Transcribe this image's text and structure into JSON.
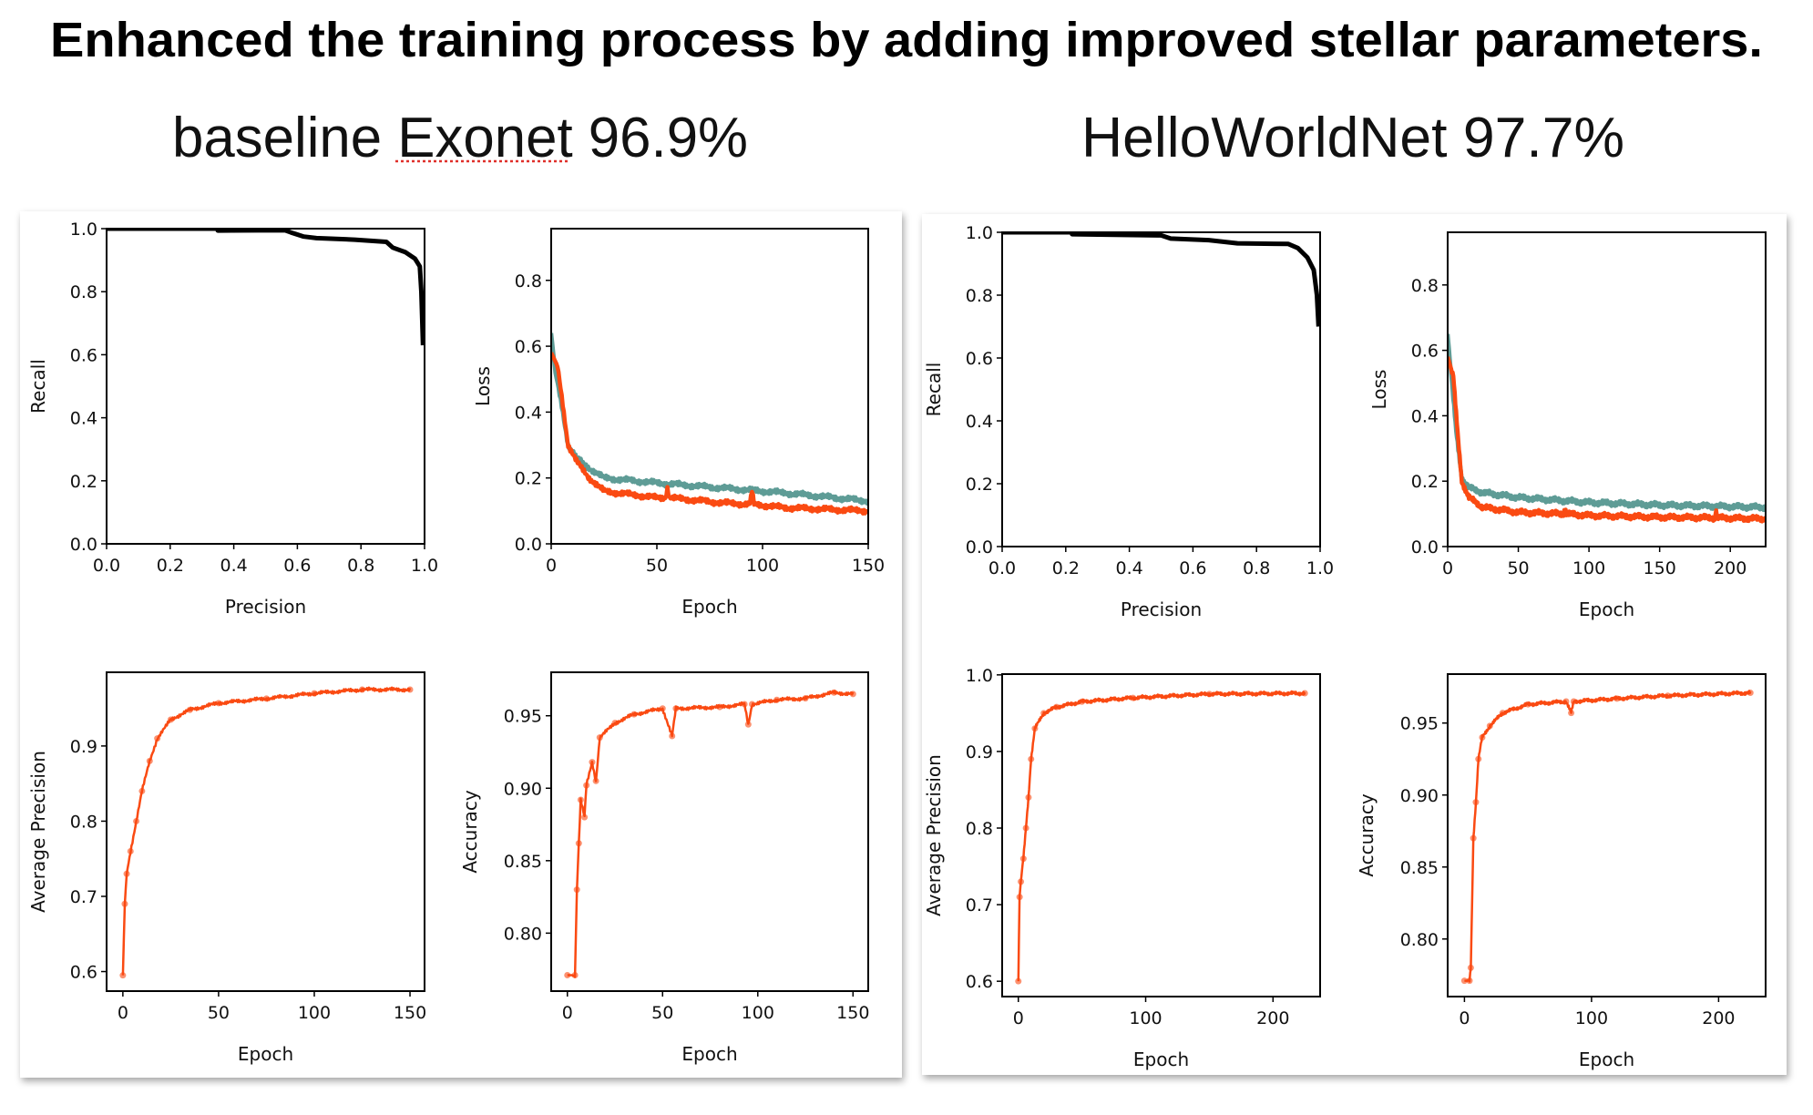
{
  "title": "Enhanced the training process by adding improved stellar parameters.",
  "panels": [
    {
      "label_prefix": "baseline ",
      "label_model": "Exonet",
      "label_score": " 96.9%"
    },
    {
      "label_prefix": "",
      "label_model": "HelloWorldNet",
      "label_score": " 97.7%"
    }
  ],
  "colors": {
    "train": "#fa4a12",
    "validation": "#5e9c96",
    "pr": "#000000",
    "spellcheck": "#e0302a"
  },
  "chart_data": [
    {
      "id": "exonet-pr",
      "type": "line",
      "xlabel": "Precision",
      "ylabel": "Recall",
      "xlim": [
        0,
        1
      ],
      "ylim": [
        0,
        1
      ],
      "xticks": [
        "0.0",
        "0.2",
        "0.4",
        "0.6",
        "0.8",
        "1.0"
      ],
      "yticks": [
        "0.0",
        "0.2",
        "0.4",
        "0.6",
        "0.8",
        "1.0"
      ],
      "series": [
        {
          "name": "PR curve",
          "color": "#000000",
          "points": [
            [
              0,
              1.0
            ],
            [
              0.35,
              1.0
            ],
            [
              0.35,
              0.994
            ],
            [
              0.56,
              0.995
            ],
            [
              0.58,
              0.988
            ],
            [
              0.62,
              0.975
            ],
            [
              0.66,
              0.97
            ],
            [
              0.78,
              0.965
            ],
            [
              0.88,
              0.958
            ],
            [
              0.9,
              0.94
            ],
            [
              0.94,
              0.925
            ],
            [
              0.97,
              0.905
            ],
            [
              0.985,
              0.88
            ],
            [
              0.99,
              0.8
            ],
            [
              0.995,
              0.63
            ]
          ]
        }
      ]
    },
    {
      "id": "exonet-loss",
      "type": "line",
      "xlabel": "Epoch",
      "ylabel": "Loss",
      "xlim": [
        0,
        150
      ],
      "ylim": [
        0,
        0.957
      ],
      "xticks": [
        "0",
        "50",
        "100",
        "150"
      ],
      "yticks": [
        "0.0",
        "0.2",
        "0.4",
        "0.6",
        "0.8"
      ],
      "series": [
        {
          "name": "validation",
          "color": "#5e9c96",
          "points": [
            [
              0,
              0.64
            ],
            [
              2,
              0.52
            ],
            [
              5,
              0.42
            ],
            [
              8,
              0.3
            ],
            [
              12,
              0.26
            ],
            [
              18,
              0.23
            ],
            [
              25,
              0.2
            ],
            [
              50,
              0.185
            ],
            [
              80,
              0.17
            ],
            [
              110,
              0.155
            ],
            [
              150,
              0.13
            ]
          ]
        },
        {
          "name": "train",
          "color": "#fa4a12",
          "points": [
            [
              0,
              0.58
            ],
            [
              3,
              0.54
            ],
            [
              5,
              0.45
            ],
            [
              8,
              0.3
            ],
            [
              12,
              0.25
            ],
            [
              18,
              0.2
            ],
            [
              25,
              0.16
            ],
            [
              50,
              0.14
            ],
            [
              54,
              0.14
            ],
            [
              55,
              0.17
            ],
            [
              56,
              0.14
            ],
            [
              80,
              0.125
            ],
            [
              94,
              0.12
            ],
            [
              95,
              0.16
            ],
            [
              96,
              0.12
            ],
            [
              110,
              0.11
            ],
            [
              150,
              0.1
            ]
          ]
        }
      ]
    },
    {
      "id": "exonet-ap",
      "type": "line",
      "xlabel": "Epoch",
      "ylabel": "Average Precision",
      "xlim": [
        -8.5,
        157.6
      ],
      "ylim": [
        0.574,
        0.998
      ],
      "xticks": [
        "0",
        "50",
        "100",
        "150"
      ],
      "yticks": [
        "0.6",
        "0.7",
        "0.8",
        "0.9"
      ],
      "series": [
        {
          "name": "average precision",
          "color": "#fa4a12",
          "markers": true,
          "points": [
            [
              0,
              0.595
            ],
            [
              1,
              0.69
            ],
            [
              2,
              0.73
            ],
            [
              4,
              0.76
            ],
            [
              7,
              0.8
            ],
            [
              10,
              0.84
            ],
            [
              14,
              0.88
            ],
            [
              18,
              0.91
            ],
            [
              25,
              0.935
            ],
            [
              35,
              0.948
            ],
            [
              50,
              0.957
            ],
            [
              75,
              0.963
            ],
            [
              100,
              0.97
            ],
            [
              125,
              0.975
            ],
            [
              150,
              0.975
            ]
          ]
        }
      ]
    },
    {
      "id": "exonet-accuracy",
      "type": "line",
      "xlabel": "Epoch",
      "ylabel": "Accuracy",
      "xlim": [
        -8.5,
        158
      ],
      "ylim": [
        0.76,
        0.98
      ],
      "xticks": [
        "0",
        "50",
        "100",
        "150"
      ],
      "yticks": [
        "0.80",
        "0.85",
        "0.90",
        "0.95"
      ],
      "series": [
        {
          "name": "accuracy",
          "color": "#fa4a12",
          "markers": true,
          "points": [
            [
              0,
              0.771
            ],
            [
              4,
              0.771
            ],
            [
              5,
              0.83
            ],
            [
              6,
              0.862
            ],
            [
              7,
              0.892
            ],
            [
              9,
              0.88
            ],
            [
              10,
              0.902
            ],
            [
              13,
              0.918
            ],
            [
              15,
              0.905
            ],
            [
              17,
              0.935
            ],
            [
              25,
              0.945
            ],
            [
              35,
              0.951
            ],
            [
              50,
              0.955
            ],
            [
              55,
              0.936
            ],
            [
              57,
              0.955
            ],
            [
              80,
              0.956
            ],
            [
              93,
              0.958
            ],
            [
              95,
              0.944
            ],
            [
              97,
              0.958
            ],
            [
              110,
              0.961
            ],
            [
              125,
              0.962
            ],
            [
              140,
              0.966
            ],
            [
              150,
              0.965
            ]
          ]
        }
      ]
    },
    {
      "id": "helloworldnet-pr",
      "type": "line",
      "xlabel": "Precision",
      "ylabel": "Recall",
      "xlim": [
        0,
        1
      ],
      "ylim": [
        0,
        1
      ],
      "xticks": [
        "0.0",
        "0.2",
        "0.4",
        "0.6",
        "0.8",
        "1.0"
      ],
      "yticks": [
        "0.0",
        "0.2",
        "0.4",
        "0.6",
        "0.8",
        "1.0"
      ],
      "series": [
        {
          "name": "PR curve",
          "color": "#000000",
          "points": [
            [
              0,
              1.0
            ],
            [
              0.22,
              1.0
            ],
            [
              0.22,
              0.994
            ],
            [
              0.5,
              0.99
            ],
            [
              0.53,
              0.98
            ],
            [
              0.65,
              0.975
            ],
            [
              0.74,
              0.965
            ],
            [
              0.9,
              0.963
            ],
            [
              0.93,
              0.95
            ],
            [
              0.96,
              0.92
            ],
            [
              0.98,
              0.88
            ],
            [
              0.99,
              0.8
            ],
            [
              0.995,
              0.7
            ]
          ]
        }
      ]
    },
    {
      "id": "helloworldnet-loss",
      "type": "line",
      "xlabel": "Epoch",
      "ylabel": "Loss",
      "xlim": [
        0,
        225
      ],
      "ylim": [
        0,
        0.961
      ],
      "xticks": [
        "0",
        "50",
        "100",
        "150",
        "200"
      ],
      "yticks": [
        "0.0",
        "0.2",
        "0.4",
        "0.6",
        "0.8"
      ],
      "series": [
        {
          "name": "validation",
          "color": "#5e9c96",
          "points": [
            [
              0,
              0.65
            ],
            [
              3,
              0.5
            ],
            [
              6,
              0.35
            ],
            [
              10,
              0.21
            ],
            [
              15,
              0.18
            ],
            [
              25,
              0.165
            ],
            [
              50,
              0.15
            ],
            [
              100,
              0.135
            ],
            [
              150,
              0.127
            ],
            [
              225,
              0.12
            ]
          ]
        },
        {
          "name": "train",
          "color": "#fa4a12",
          "points": [
            [
              0,
              0.58
            ],
            [
              4,
              0.52
            ],
            [
              7,
              0.35
            ],
            [
              10,
              0.2
            ],
            [
              15,
              0.15
            ],
            [
              25,
              0.12
            ],
            [
              50,
              0.105
            ],
            [
              82,
              0.1
            ],
            [
              83,
              0.12
            ],
            [
              84,
              0.1
            ],
            [
              100,
              0.095
            ],
            [
              150,
              0.09
            ],
            [
              189,
              0.088
            ],
            [
              190,
              0.11
            ],
            [
              191,
              0.088
            ],
            [
              225,
              0.085
            ]
          ]
        }
      ]
    },
    {
      "id": "helloworldnet-ap",
      "type": "line",
      "xlabel": "Epoch",
      "ylabel": "Average Precision",
      "xlim": [
        -12.7,
        237
      ],
      "ylim": [
        0.58,
        1.001
      ],
      "xticks": [
        "0",
        "100",
        "200"
      ],
      "yticks": [
        "0.6",
        "0.7",
        "0.8",
        "0.9",
        "1.0"
      ],
      "series": [
        {
          "name": "average precision",
          "color": "#fa4a12",
          "markers": true,
          "points": [
            [
              0,
              0.6
            ],
            [
              1,
              0.71
            ],
            [
              2,
              0.73
            ],
            [
              4,
              0.76
            ],
            [
              6,
              0.8
            ],
            [
              8,
              0.84
            ],
            [
              10,
              0.89
            ],
            [
              13,
              0.93
            ],
            [
              20,
              0.95
            ],
            [
              30,
              0.958
            ],
            [
              50,
              0.965
            ],
            [
              90,
              0.97
            ],
            [
              150,
              0.975
            ],
            [
              225,
              0.976
            ]
          ]
        }
      ]
    },
    {
      "id": "helloworldnet-accuracy",
      "type": "line",
      "xlabel": "Epoch",
      "ylabel": "Accuracy",
      "xlim": [
        -13.2,
        237
      ],
      "ylim": [
        0.76,
        0.984
      ],
      "xticks": [
        "0",
        "100",
        "200"
      ],
      "yticks": [
        "0.80",
        "0.85",
        "0.90",
        "0.95"
      ],
      "series": [
        {
          "name": "accuracy",
          "color": "#fa4a12",
          "markers": true,
          "points": [
            [
              0,
              0.771
            ],
            [
              4,
              0.771
            ],
            [
              5,
              0.78
            ],
            [
              7,
              0.87
            ],
            [
              9,
              0.895
            ],
            [
              11,
              0.925
            ],
            [
              14,
              0.94
            ],
            [
              20,
              0.948
            ],
            [
              30,
              0.957
            ],
            [
              50,
              0.963
            ],
            [
              80,
              0.965
            ],
            [
              84,
              0.957
            ],
            [
              86,
              0.965
            ],
            [
              120,
              0.967
            ],
            [
              160,
              0.969
            ],
            [
              225,
              0.971
            ]
          ]
        }
      ]
    }
  ]
}
